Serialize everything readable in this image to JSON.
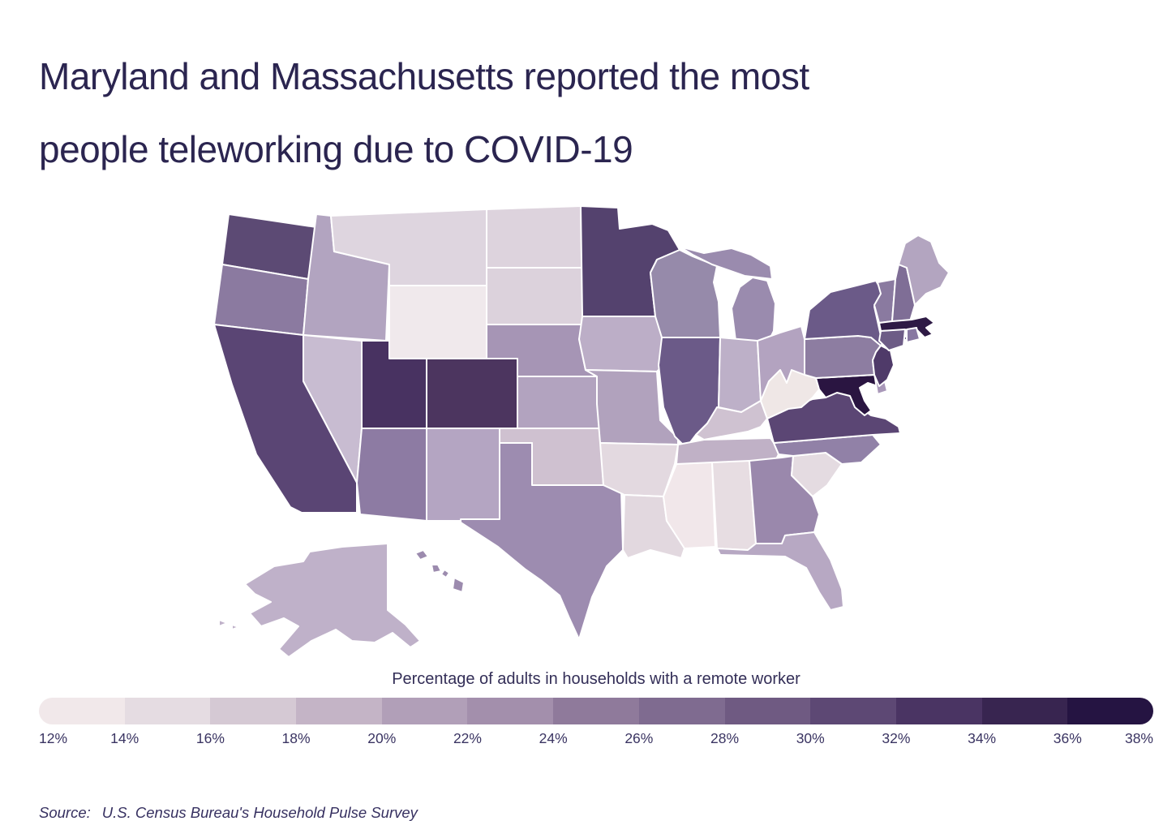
{
  "title": {
    "line1": "Maryland and Massachusetts reported the most",
    "line2": "people teleworking due to COVID-19"
  },
  "legend": {
    "title": "Percentage of adults in households with a remote worker",
    "tick_labels": [
      "12%",
      "14%",
      "16%",
      "18%",
      "20%",
      "22%",
      "24%",
      "26%",
      "28%",
      "30%",
      "32%",
      "34%",
      "36%",
      "38%"
    ],
    "bucket_colors": [
      "#f1e8ea",
      "#e5dce2",
      "#d5c9d4",
      "#c4b4c6",
      "#b19fb8",
      "#a38fac",
      "#8f7a9b",
      "#7f6b90",
      "#6f5a82",
      "#5d4874",
      "#4a3463",
      "#382550",
      "#251442"
    ]
  },
  "source": {
    "label": "Source:",
    "text": "U.S. Census Bureau's Household Pulse Survey"
  },
  "colors": {
    "title_text": "#2b2550",
    "tick_text": "#3a3462",
    "state_border": "#ffffff",
    "background": "#ffffff"
  },
  "chart_data": {
    "type": "choropleth_map",
    "region": "United States",
    "metric": "Percentage of adults in households with a remote worker",
    "legend_position": "bottom",
    "scale": {
      "min": 12,
      "max": 38,
      "unit": "%",
      "steps": 13
    },
    "states": [
      {
        "id": "WA",
        "name": "Washington",
        "value": 31,
        "color": "#5c4a74"
      },
      {
        "id": "OR",
        "name": "Oregon",
        "value": 25,
        "color": "#8b7aa0"
      },
      {
        "id": "CA",
        "name": "California",
        "value": 31.5,
        "color": "#5a4574"
      },
      {
        "id": "NV",
        "name": "Nevada",
        "value": 18.5,
        "color": "#c8bcd1"
      },
      {
        "id": "ID",
        "name": "Idaho",
        "value": 20.5,
        "color": "#b2a4c0"
      },
      {
        "id": "MT",
        "name": "Montana",
        "value": 15.5,
        "color": "#ded5df"
      },
      {
        "id": "WY",
        "name": "Wyoming",
        "value": 12.5,
        "color": "#f0e9ec"
      },
      {
        "id": "UT",
        "name": "Utah",
        "value": 33,
        "color": "#483261"
      },
      {
        "id": "CO",
        "name": "Colorado",
        "value": 33,
        "color": "#4c355f"
      },
      {
        "id": "AZ",
        "name": "Arizona",
        "value": 25,
        "color": "#8d7ba3"
      },
      {
        "id": "NM",
        "name": "New Mexico",
        "value": 20.5,
        "color": "#b4a5c2"
      },
      {
        "id": "ND",
        "name": "North Dakota",
        "value": 16.5,
        "color": "#ddd3dd"
      },
      {
        "id": "SD",
        "name": "South Dakota",
        "value": 16.5,
        "color": "#dcd2dc"
      },
      {
        "id": "NE",
        "name": "Nebraska",
        "value": 23,
        "color": "#a695b5"
      },
      {
        "id": "KS",
        "name": "Kansas",
        "value": 20.5,
        "color": "#b2a3bf"
      },
      {
        "id": "OK",
        "name": "Oklahoma",
        "value": 17,
        "color": "#cfc1d0"
      },
      {
        "id": "TX",
        "name": "Texas",
        "value": 23.5,
        "color": "#9d8cb0"
      },
      {
        "id": "MN",
        "name": "Minnesota",
        "value": 31,
        "color": "#54426e"
      },
      {
        "id": "IA",
        "name": "Iowa",
        "value": 19,
        "color": "#bcaec7"
      },
      {
        "id": "MO",
        "name": "Missouri",
        "value": 21,
        "color": "#b1a2bd"
      },
      {
        "id": "AR",
        "name": "Arkansas",
        "value": 15,
        "color": "#e3d9e0"
      },
      {
        "id": "LA",
        "name": "Louisiana",
        "value": 15,
        "color": "#e2d8df"
      },
      {
        "id": "WI",
        "name": "Wisconsin",
        "value": 23.5,
        "color": "#968aaa"
      },
      {
        "id": "MI",
        "name": "Michigan",
        "value": 23.5,
        "color": "#9a8bae"
      },
      {
        "id": "IL",
        "name": "Illinois",
        "value": 28.5,
        "color": "#6b5a88"
      },
      {
        "id": "IN",
        "name": "Indiana",
        "value": 19,
        "color": "#bdb0c8"
      },
      {
        "id": "OH",
        "name": "Ohio",
        "value": 20.5,
        "color": "#b3a3c0"
      },
      {
        "id": "KY",
        "name": "Kentucky",
        "value": 17,
        "color": "#cfc2d1"
      },
      {
        "id": "TN",
        "name": "Tennessee",
        "value": 19,
        "color": "#c0b1c6"
      },
      {
        "id": "MS",
        "name": "Mississippi",
        "value": 13,
        "color": "#f1e7ea"
      },
      {
        "id": "AL",
        "name": "Alabama",
        "value": 15,
        "color": "#e7dde2"
      },
      {
        "id": "GA",
        "name": "Georgia",
        "value": 23.5,
        "color": "#9a88ac"
      },
      {
        "id": "FL",
        "name": "Florida",
        "value": 21,
        "color": "#b7a8c3"
      },
      {
        "id": "SC",
        "name": "South Carolina",
        "value": 15,
        "color": "#e4dbe1"
      },
      {
        "id": "NC",
        "name": "North Carolina",
        "value": 25,
        "color": "#9181a7"
      },
      {
        "id": "VA",
        "name": "Virginia",
        "value": 31,
        "color": "#5b4674"
      },
      {
        "id": "WV",
        "name": "West Virginia",
        "value": 12.5,
        "color": "#efe7e6"
      },
      {
        "id": "MD",
        "name": "Maryland",
        "value": 38,
        "color": "#2a1541"
      },
      {
        "id": "DE",
        "name": "Delaware",
        "value": 23,
        "color": "#a998b9"
      },
      {
        "id": "NJ",
        "name": "New Jersey",
        "value": 32.5,
        "color": "#4f3a69"
      },
      {
        "id": "PA",
        "name": "Pennsylvania",
        "value": 25,
        "color": "#8d7da1"
      },
      {
        "id": "NY",
        "name": "New York",
        "value": 28.5,
        "color": "#6b5a88"
      },
      {
        "id": "CT",
        "name": "Connecticut",
        "value": 27.5,
        "color": "#6d5c86"
      },
      {
        "id": "RI",
        "name": "Rhode Island",
        "value": 25.5,
        "color": "#8878a2"
      },
      {
        "id": "MA",
        "name": "Massachusetts",
        "value": 37.5,
        "color": "#2e1a45"
      },
      {
        "id": "VT",
        "name": "Vermont",
        "value": 25.5,
        "color": "#8a7aa0"
      },
      {
        "id": "NH",
        "name": "New Hampshire",
        "value": 27,
        "color": "#7f6e96"
      },
      {
        "id": "ME",
        "name": "Maine",
        "value": 20.5,
        "color": "#b3a5c0"
      },
      {
        "id": "AK",
        "name": "Alaska",
        "value": 19.5,
        "color": "#bfb1c9"
      },
      {
        "id": "HI",
        "name": "Hawaii",
        "value": 23,
        "color": "#9c8bae"
      }
    ]
  }
}
